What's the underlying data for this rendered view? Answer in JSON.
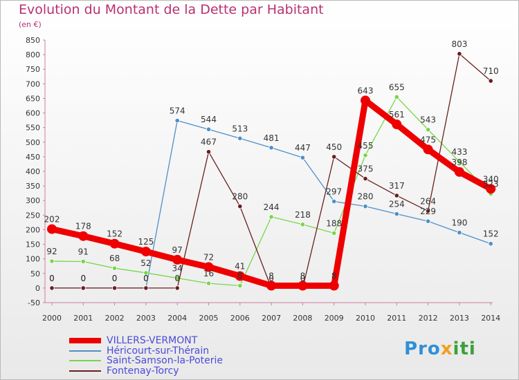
{
  "header": {
    "title": "Evolution du Montant de la Dette par Habitant",
    "subtitle": "(en €)"
  },
  "logo": {
    "part1": "Pro",
    "part2": "x",
    "part3": "iti"
  },
  "chart_data": {
    "type": "line",
    "x": [
      "2000",
      "2001",
      "2002",
      "2003",
      "2004",
      "2005",
      "2006",
      "2007",
      "2008",
      "2009",
      "2010",
      "2011",
      "2012",
      "2013",
      "2014"
    ],
    "ylim": [
      -50,
      850
    ],
    "yticks": [
      -50,
      0,
      50,
      100,
      150,
      200,
      250,
      300,
      350,
      400,
      450,
      500,
      550,
      600,
      650,
      700,
      750,
      800,
      850
    ],
    "grid": false,
    "legend": "bottom-left",
    "series": [
      {
        "name": "VILLERS-VERMONT",
        "color": "#ee0000",
        "values": [
          202,
          178,
          152,
          125,
          97,
          72,
          41,
          8,
          8,
          8,
          643,
          561,
          475,
          398,
          340
        ]
      },
      {
        "name": "Héricourt-sur-Thérain",
        "color": "#4d8fc9",
        "values": [
          0,
          0,
          0,
          0,
          574,
          544,
          513,
          481,
          447,
          297,
          280,
          254,
          229,
          190,
          152
        ]
      },
      {
        "name": "Saint-Samson-la-Poterie",
        "color": "#77d64a",
        "values": [
          92,
          91,
          68,
          52,
          34,
          16,
          8,
          244,
          218,
          188,
          455,
          655,
          543,
          433,
          323
        ]
      },
      {
        "name": "Fontenay-Torcy",
        "color": "#6a1e1e",
        "values": [
          0,
          0,
          0,
          0,
          0,
          467,
          280,
          0,
          0,
          450,
          375,
          317,
          264,
          803,
          710
        ]
      }
    ]
  }
}
